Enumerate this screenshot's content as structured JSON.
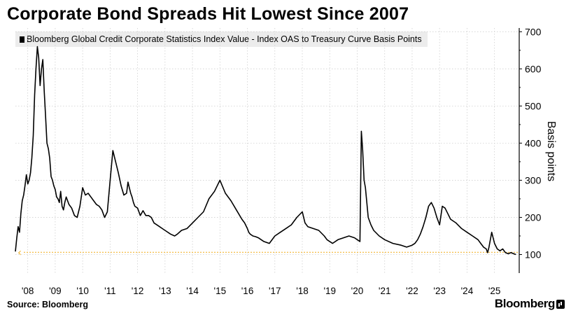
{
  "title": "Corporate Bond Spreads Hit Lowest Since 2007",
  "source": "Source: Bloomberg",
  "brand": "Bloomberg",
  "brand_icon": "bloomberg-terminal-icon",
  "colors": {
    "series": "#000000",
    "grid": "#cfcfcf",
    "current_level": "#f2b632",
    "legend_bg": "#ececec"
  },
  "chart_data": {
    "type": "line",
    "legend": "Bloomberg Global Credit Corporate Statistics Index Value - Index OAS to Treasury Curve Basis Points",
    "ylabel": "Basis points",
    "ylim": [
      50,
      710
    ],
    "xlim": [
      2007.55,
      2025.85
    ],
    "y_ticks": [
      100,
      200,
      300,
      400,
      500,
      600,
      700
    ],
    "x_ticks": [
      {
        "label": "'08",
        "x": 2008.0
      },
      {
        "label": "'09",
        "x": 2009.0
      },
      {
        "label": "'10",
        "x": 2010.0
      },
      {
        "label": "'11",
        "x": 2011.0
      },
      {
        "label": "'12",
        "x": 2012.0
      },
      {
        "label": "'13",
        "x": 2013.0
      },
      {
        "label": "'14",
        "x": 2014.0
      },
      {
        "label": "'15",
        "x": 2015.0
      },
      {
        "label": "'16",
        "x": 2016.0
      },
      {
        "label": "'17",
        "x": 2017.0
      },
      {
        "label": "'18",
        "x": 2018.0
      },
      {
        "label": "'19",
        "x": 2019.0
      },
      {
        "label": "'20",
        "x": 2020.0
      },
      {
        "label": "'21",
        "x": 2021.0
      },
      {
        "label": "'22",
        "x": 2022.0
      },
      {
        "label": "'23",
        "x": 2023.0
      },
      {
        "label": "'24",
        "x": 2024.0
      },
      {
        "label": "'25",
        "x": 2025.0
      }
    ],
    "grid": true,
    "legend_position": "top-left",
    "current_level_line": 106,
    "series": [
      {
        "x": [
          2007.55,
          2007.6,
          2007.65,
          2007.7,
          2007.75,
          2007.8,
          2007.85,
          2007.9,
          2007.95,
          2008.0,
          2008.05,
          2008.1,
          2008.15,
          2008.2,
          2008.25,
          2008.3,
          2008.35,
          2008.4,
          2008.45,
          2008.5,
          2008.55,
          2008.6,
          2008.65,
          2008.7,
          2008.75,
          2008.8,
          2008.85,
          2008.9,
          2008.95,
          2009.0,
          2009.05,
          2009.1,
          2009.15,
          2009.2,
          2009.25,
          2009.3,
          2009.35,
          2009.4,
          2009.5,
          2009.6,
          2009.7,
          2009.8,
          2009.9,
          2010.0,
          2010.1,
          2010.2,
          2010.3,
          2010.4,
          2010.5,
          2010.6,
          2010.7,
          2010.8,
          2010.9,
          2011.0,
          2011.1,
          2011.2,
          2011.3,
          2011.4,
          2011.5,
          2011.6,
          2011.65,
          2011.7,
          2011.75,
          2011.8,
          2011.85,
          2011.9,
          2012.0,
          2012.1,
          2012.2,
          2012.3,
          2012.4,
          2012.5,
          2012.6,
          2012.7,
          2012.8,
          2012.9,
          2013.0,
          2013.2,
          2013.35,
          2013.45,
          2013.6,
          2013.8,
          2014.0,
          2014.2,
          2014.4,
          2014.6,
          2014.8,
          2015.0,
          2015.2,
          2015.4,
          2015.6,
          2015.8,
          2015.9,
          2016.0,
          2016.05,
          2016.1,
          2016.2,
          2016.3,
          2016.4,
          2016.5,
          2016.6,
          2016.8,
          2017.0,
          2017.2,
          2017.4,
          2017.6,
          2017.8,
          2018.0,
          2018.1,
          2018.2,
          2018.4,
          2018.6,
          2018.8,
          2018.9,
          2019.0,
          2019.1,
          2019.3,
          2019.5,
          2019.7,
          2019.9,
          2020.0,
          2020.1,
          2020.15,
          2020.2,
          2020.25,
          2020.3,
          2020.35,
          2020.4,
          2020.5,
          2020.6,
          2020.8,
          2021.0,
          2021.3,
          2021.6,
          2021.8,
          2022.0,
          2022.1,
          2022.2,
          2022.3,
          2022.4,
          2022.5,
          2022.6,
          2022.7,
          2022.8,
          2022.9,
          2023.0,
          2023.1,
          2023.2,
          2023.3,
          2023.4,
          2023.6,
          2023.8,
          2024.0,
          2024.2,
          2024.4,
          2024.5,
          2024.6,
          2024.7,
          2024.75,
          2024.8,
          2024.9,
          2025.0,
          2025.1,
          2025.2,
          2025.3,
          2025.4,
          2025.5,
          2025.6,
          2025.7,
          2025.78
        ],
        "y": [
          108,
          145,
          175,
          160,
          210,
          245,
          260,
          285,
          315,
          290,
          300,
          320,
          360,
          420,
          530,
          600,
          660,
          630,
          555,
          600,
          625,
          540,
          470,
          400,
          385,
          360,
          310,
          300,
          285,
          275,
          255,
          250,
          240,
          270,
          230,
          220,
          240,
          255,
          235,
          225,
          205,
          200,
          230,
          280,
          260,
          265,
          255,
          245,
          235,
          230,
          220,
          200,
          215,
          300,
          380,
          350,
          320,
          285,
          260,
          265,
          295,
          280,
          265,
          255,
          240,
          230,
          225,
          205,
          218,
          205,
          205,
          200,
          185,
          180,
          175,
          170,
          165,
          155,
          150,
          155,
          165,
          170,
          185,
          200,
          215,
          250,
          270,
          300,
          265,
          245,
          220,
          195,
          185,
          170,
          160,
          155,
          150,
          148,
          145,
          140,
          135,
          130,
          150,
          160,
          170,
          180,
          200,
          215,
          185,
          175,
          170,
          165,
          150,
          140,
          135,
          130,
          140,
          145,
          150,
          145,
          140,
          135,
          432,
          380,
          300,
          280,
          240,
          200,
          180,
          165,
          150,
          140,
          130,
          125,
          120,
          125,
          130,
          140,
          155,
          175,
          200,
          230,
          240,
          225,
          200,
          180,
          230,
          225,
          210,
          195,
          185,
          170,
          160,
          150,
          140,
          130,
          120,
          115,
          105,
          120,
          160,
          130,
          115,
          110,
          115,
          105,
          102,
          105,
          102,
          100
        ]
      }
    ]
  }
}
